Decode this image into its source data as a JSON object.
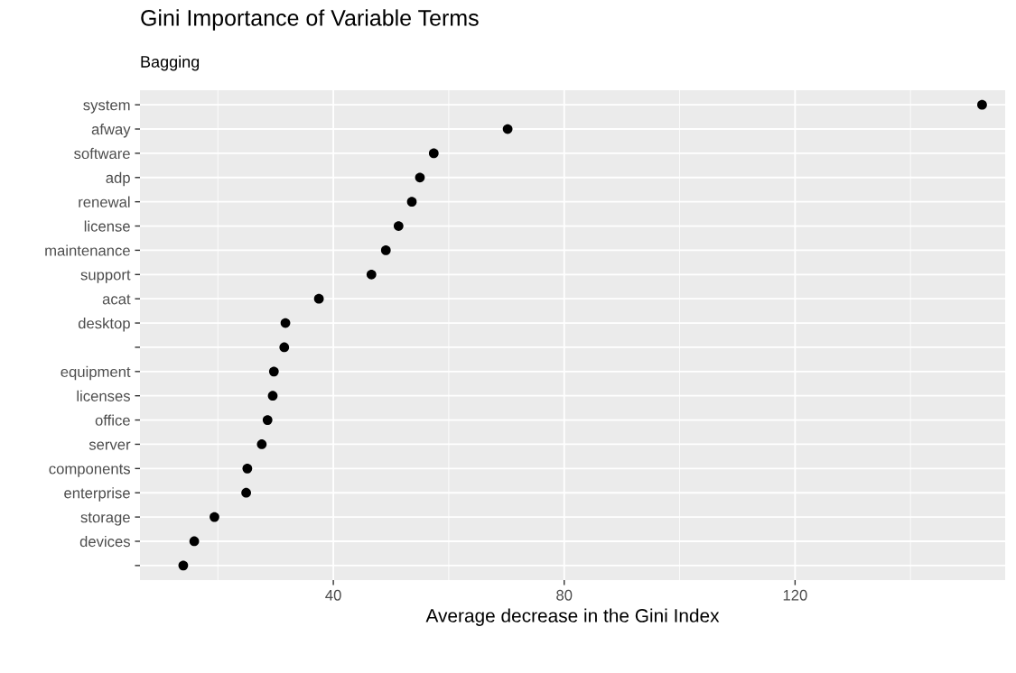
{
  "chart_data": {
    "type": "scatter",
    "title": "Gini Importance of Variable Terms",
    "subtitle": "Bagging",
    "xlabel": "Average decrease in the Gini Index",
    "orientation": "horizontal",
    "categories": [
      "system",
      "afway",
      "software",
      "adp",
      "renewal",
      "license",
      "maintenance",
      "support",
      "acat",
      "desktop",
      null,
      "equipment",
      "licenses",
      "office",
      "server",
      "components",
      "enterprise",
      "storage",
      "devices",
      null
    ],
    "series": [
      {
        "color": "#000000",
        "values": [
          152.4,
          70.2,
          57.4,
          55.0,
          53.6,
          51.3,
          49.1,
          46.6,
          37.5,
          31.7,
          31.5,
          29.7,
          29.5,
          28.6,
          27.6,
          25.1,
          24.9,
          19.4,
          15.9,
          14.0
        ]
      }
    ],
    "xlim": [
      6.5,
      156.4
    ],
    "xticks": [
      40,
      80,
      120
    ],
    "grid": true,
    "marker": "circle"
  }
}
